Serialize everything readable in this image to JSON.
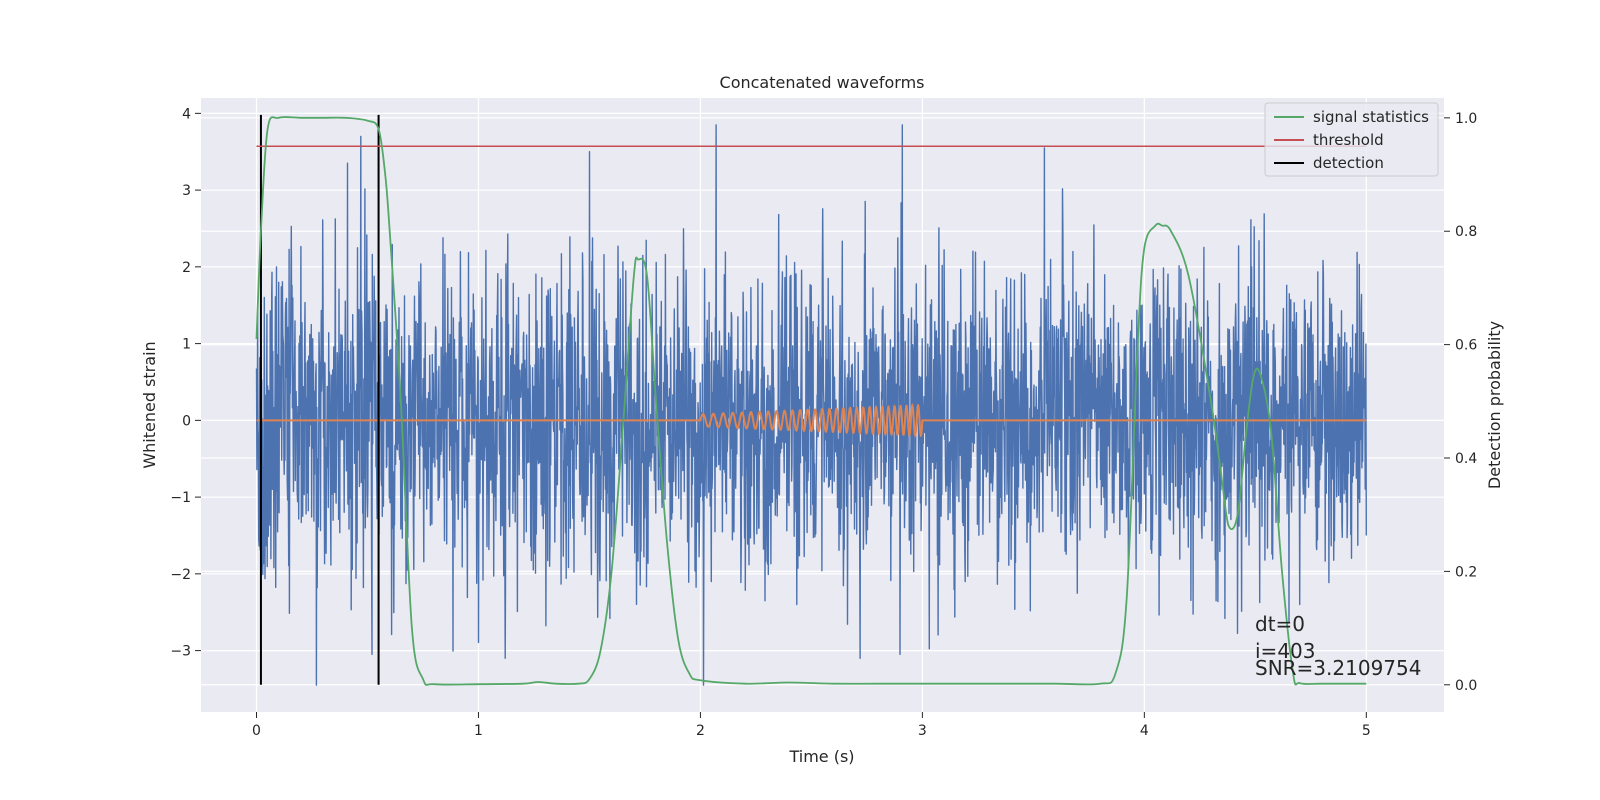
{
  "colors": {
    "background": "#ffffff",
    "axes_face": "#eaeaf2",
    "grid": "#ffffff",
    "noise": "#4c72b0",
    "template": "#dd8452",
    "signal_statistics": "#55a868",
    "threshold": "#c44e52",
    "detection": "#000000",
    "text": "#262626"
  },
  "chart_data": {
    "type": "line",
    "title": "Concatenated waveforms",
    "xlabel": "Time (s)",
    "ylabel": "Whitened strain",
    "ylabel_right": "Detection probability",
    "xlim": [
      -0.25,
      5.35
    ],
    "ylim": [
      -3.8,
      4.2
    ],
    "ylim_right": [
      -0.048,
      1.035
    ],
    "xticks": [
      0,
      1,
      2,
      3,
      4,
      5
    ],
    "xtick_labels": [
      "0",
      "1",
      "2",
      "3",
      "4",
      "5"
    ],
    "yticks": [
      4,
      3,
      2,
      1,
      0,
      -1,
      -2,
      -3
    ],
    "ytick_labels": [
      "4",
      "3",
      "2",
      "1",
      "0",
      "−1",
      "−2",
      "−3"
    ],
    "yticks_right": [
      1.0,
      0.8,
      0.6,
      0.4,
      0.2,
      0.0
    ],
    "ytick_labels_right": [
      "1.0",
      "0.8",
      "0.6",
      "0.4",
      "0.2",
      "0.0"
    ],
    "grid": true,
    "legend_position": "top-right",
    "noise": {
      "x_range": [
        0,
        5
      ],
      "typical_range": [
        -1.5,
        1.5
      ],
      "extreme_range": [
        -3.45,
        3.85
      ],
      "peaks": [
        {
          "x": 0.02,
          "y": 1.05
        },
        {
          "x": 0.27,
          "y": -3.45
        },
        {
          "x": 0.41,
          "y": 3.35
        },
        {
          "x": 0.47,
          "y": 3.7
        },
        {
          "x": 0.52,
          "y": -3.05
        },
        {
          "x": 1.12,
          "y": -3.1
        },
        {
          "x": 1.5,
          "y": 3.5
        },
        {
          "x": 2.07,
          "y": 3.85
        },
        {
          "x": 2.72,
          "y": -3.1
        },
        {
          "x": 2.9,
          "y": -3.05
        },
        {
          "x": 3.55,
          "y": 3.55
        },
        {
          "x": 4.7,
          "y": -2.4
        },
        {
          "x": 5.0,
          "y": -1.5
        }
      ]
    },
    "template": {
      "x_range": [
        0,
        5
      ],
      "chirp_x_range": [
        2.0,
        3.0
      ],
      "chirp_amplitude": [
        0.08,
        0.2
      ],
      "chirp_cycles": 30
    },
    "signal_statistics": {
      "name": "signal statistics",
      "axis": "right",
      "x": [
        0.0,
        0.02,
        0.05,
        0.1,
        0.2,
        0.3,
        0.4,
        0.5,
        0.55,
        0.58,
        0.6,
        0.65,
        0.7,
        0.75,
        0.8,
        1.0,
        1.2,
        1.27,
        1.35,
        1.45,
        1.5,
        1.55,
        1.6,
        1.65,
        1.7,
        1.72,
        1.76,
        1.8,
        1.85,
        1.9,
        1.95,
        2.0,
        2.2,
        2.4,
        2.6,
        2.8,
        3.0,
        3.2,
        3.4,
        3.6,
        3.8,
        3.87,
        3.92,
        3.97,
        4.0,
        4.05,
        4.08,
        4.12,
        4.2,
        4.3,
        4.35,
        4.38,
        4.42,
        4.46,
        4.49,
        4.52,
        4.57,
        4.62,
        4.67,
        4.7,
        4.8,
        5.0
      ],
      "values": [
        0.61,
        0.8,
        0.98,
        1.0,
        1.0,
        1.0,
        1.0,
        0.995,
        0.98,
        0.9,
        0.8,
        0.5,
        0.1,
        0.01,
        0.001,
        0.001,
        0.002,
        0.005,
        0.002,
        0.002,
        0.01,
        0.06,
        0.2,
        0.45,
        0.72,
        0.75,
        0.72,
        0.5,
        0.25,
        0.08,
        0.02,
        0.008,
        0.002,
        0.004,
        0.002,
        0.002,
        0.002,
        0.002,
        0.002,
        0.002,
        0.002,
        0.02,
        0.15,
        0.6,
        0.77,
        0.81,
        0.81,
        0.8,
        0.72,
        0.5,
        0.36,
        0.28,
        0.3,
        0.45,
        0.54,
        0.55,
        0.45,
        0.2,
        0.02,
        0.003,
        0.002,
        0.002
      ]
    },
    "threshold": {
      "name": "threshold",
      "axis": "right",
      "value": 0.95,
      "x_range": [
        0,
        5
      ]
    },
    "detection": {
      "name": "detection",
      "axis": "right",
      "x": [
        0.02,
        0.55
      ],
      "y_range": [
        0.0,
        1.0
      ]
    },
    "annotations": [
      "dt=0",
      "i=403",
      "SNR=3.2109754"
    ]
  }
}
